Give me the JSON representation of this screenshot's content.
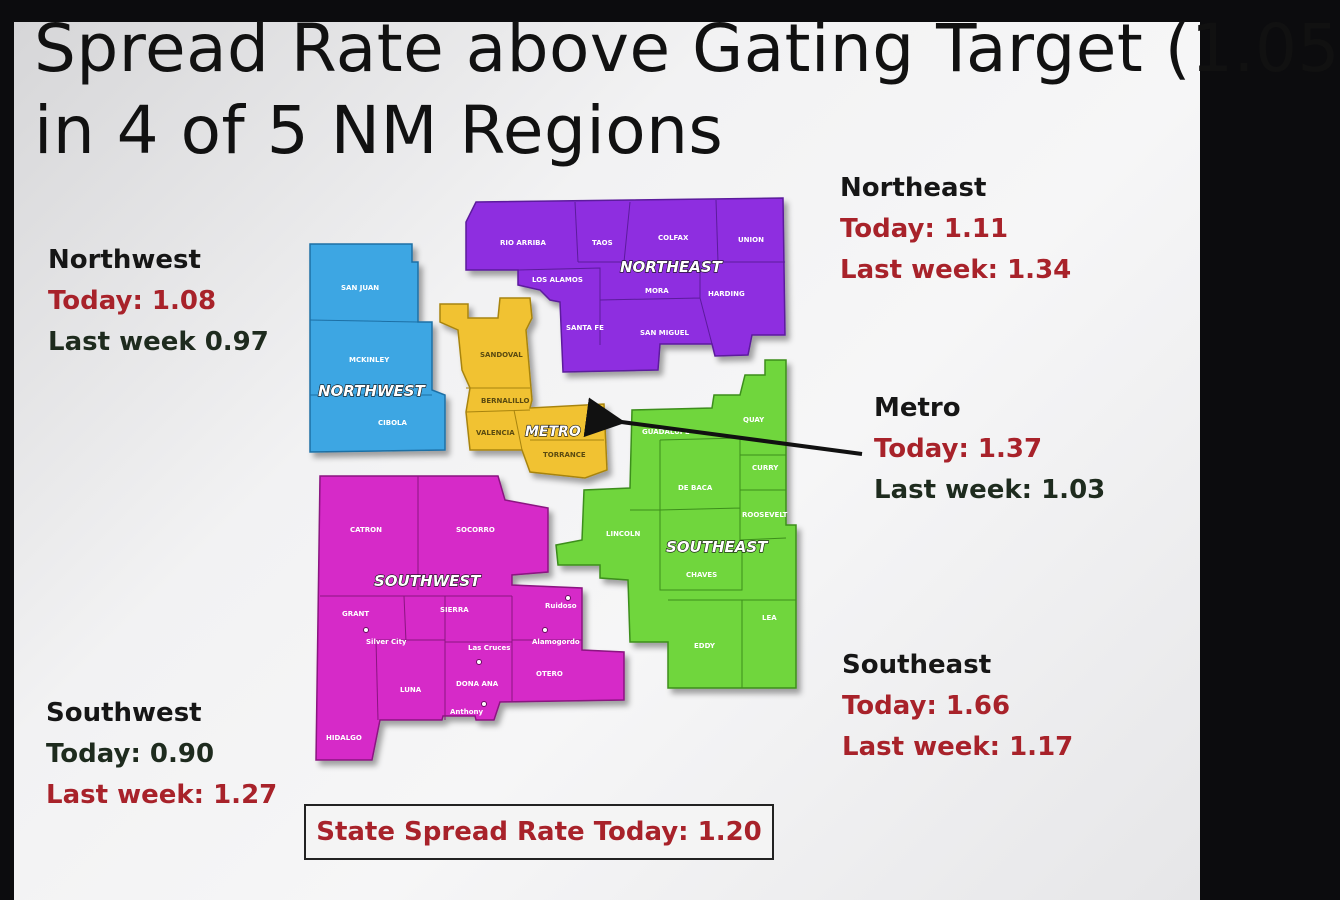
{
  "slide": {
    "title_line1": "Spread Rate above Gating Target (1.05",
    "title_line2": "in 4 of 5 NM Regions"
  },
  "map": {
    "regions": {
      "northwest": {
        "label": "NORTHWEST",
        "color": "#3ea6e3",
        "counties": [
          "SAN JUAN",
          "MCKINLEY",
          "CIBOLA"
        ]
      },
      "northeast": {
        "label": "NORTHEAST",
        "color": "#8e2fe0",
        "counties": [
          "RIO ARRIBA",
          "TAOS",
          "COLFAX",
          "UNION",
          "LOS ALAMOS",
          "MORA",
          "HARDING",
          "SANTA FE",
          "SAN MIGUEL"
        ]
      },
      "metro": {
        "label": "METRO",
        "color": "#f1c232",
        "counties": [
          "SANDOVAL",
          "BERNALILLO",
          "VALENCIA",
          "TORRANCE"
        ]
      },
      "southeast": {
        "label": "SOUTHEAST",
        "color": "#6fd63c",
        "counties": [
          "GUADALUPE",
          "QUAY",
          "CURRY",
          "DE BACA",
          "ROOSEVELT",
          "LINCOLN",
          "CHAVES",
          "LEA",
          "EDDY"
        ]
      },
      "southwest": {
        "label": "SOUTHWEST",
        "color": "#d629c8",
        "counties": [
          "CATRON",
          "SOCORRO",
          "GRANT",
          "SIERRA",
          "LUNA",
          "DONA ANA",
          "OTERO",
          "HIDALGO"
        ]
      }
    },
    "cities": [
      "Silver City",
      "Las Cruces",
      "Alamogordo",
      "Ruidoso",
      "Anthony"
    ]
  },
  "stats": {
    "northwest": {
      "name": "Northwest",
      "today": "Today: 1.08",
      "last_week": "Last week 0.97"
    },
    "northeast": {
      "name": "Northeast",
      "today": "Today: 1.11",
      "last_week": "Last week: 1.34"
    },
    "metro": {
      "name": "Metro",
      "today": "Today: 1.37",
      "last_week": "Last week: 1.03"
    },
    "southeast": {
      "name": "Southeast",
      "today": "Today: 1.66",
      "last_week": "Last week: 1.17"
    },
    "southwest": {
      "name": "Southwest",
      "today": "Today: 0.90",
      "last_week": "Last week: 1.27"
    }
  },
  "state_rate": "State Spread Rate Today: 1.20",
  "colors": {
    "increase": "#a8222a",
    "decrease": "#1e2b1e"
  }
}
